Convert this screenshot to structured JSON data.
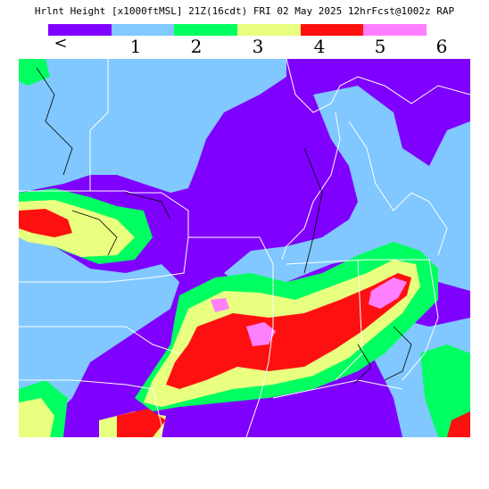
{
  "header": {
    "title": "Hrlnt Height [x1000ftMSL] 21Z(16cdt) FRI 02 May 2025 12hrFcst@1002z RAP"
  },
  "legend": {
    "colors": [
      "#8000ff",
      "#80c8ff",
      "#00ff60",
      "#e8ff80",
      "#ff1010",
      "#ff80ff"
    ],
    "tick_labels": [
      "<",
      "1",
      "2",
      "3",
      "4",
      "5",
      "6"
    ]
  },
  "map": {
    "description_colors": {
      "lt1": "#8000ff",
      "1to2": "#80c8ff",
      "2to3": "#00ff60",
      "3to4": "#e8ff80",
      "4to5": "#ff1010",
      "5to6": "#ff80ff"
    }
  }
}
